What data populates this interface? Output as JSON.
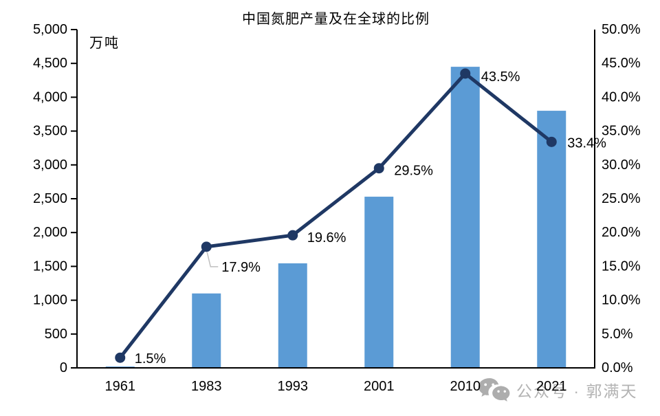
{
  "chart_data": {
    "type": "combo-bar-line",
    "title": "中国氮肥产量及在全球的比例",
    "left_axis": {
      "unit": "万吨",
      "min": 0,
      "max": 5000,
      "step": 500,
      "tick_labels": [
        "0",
        "500",
        "1,000",
        "1,500",
        "2,000",
        "2,500",
        "3,000",
        "3,500",
        "4,000",
        "4,500",
        "5,000"
      ]
    },
    "right_axis": {
      "min": 0,
      "max": 50,
      "step": 5,
      "tick_labels": [
        "0.0%",
        "5.0%",
        "10.0%",
        "15.0%",
        "20.0%",
        "25.0%",
        "30.0%",
        "35.0%",
        "40.0%",
        "45.0%",
        "50.0%"
      ]
    },
    "categories": [
      "1961",
      "1983",
      "1993",
      "2001",
      "2010",
      "2021"
    ],
    "series": [
      {
        "name": "氮肥产量",
        "type": "bar",
        "axis": "left",
        "color": "#5B9BD5",
        "values": [
          20,
          1100,
          1545,
          2530,
          4450,
          3800
        ]
      },
      {
        "name": "在全球的比例",
        "type": "line",
        "axis": "right",
        "color": "#1F3864",
        "values": [
          1.5,
          17.9,
          19.6,
          29.5,
          43.5,
          33.4
        ],
        "point_labels": [
          "1.5%",
          "17.9%",
          "19.6%",
          "29.5%",
          "43.5%",
          "33.4%"
        ]
      }
    ],
    "grid": false,
    "legend": "none"
  },
  "watermark": {
    "icon": "wechat-icon",
    "text": "公众号 · 郭满天"
  }
}
